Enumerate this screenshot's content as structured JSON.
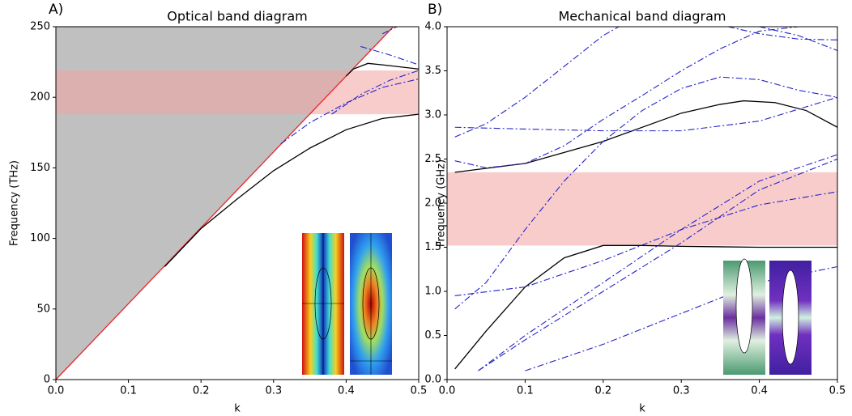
{
  "chart_data": [
    {
      "type": "line",
      "panel_label": "A)",
      "title": "Optical band diagram",
      "xlabel": "k",
      "ylabel": "Frequency (THz)",
      "xlim": [
        0,
        0.5
      ],
      "ylim": [
        0,
        250
      ],
      "xticks": [
        {
          "value": 0,
          "label": "0.0"
        },
        0.1,
        0.2,
        0.3,
        0.4,
        0.5
      ],
      "yticks": [
        0,
        50,
        100,
        150,
        200,
        250
      ],
      "shaded_band": {
        "range": [
          188,
          219
        ],
        "color": "#f4a3a3"
      },
      "series": [
        {
          "color": "#e8262a",
          "style": "solid",
          "fill_above": "#c0c0c0",
          "x": [
            0,
            0.465
          ],
          "values": [
            0,
            250
          ]
        },
        {
          "color": "#000000",
          "style": "solid",
          "x": [
            0.15,
            0.2,
            0.25,
            0.3,
            0.35,
            0.4,
            0.45,
            0.5
          ],
          "values": [
            80,
            107,
            128,
            148,
            164,
            177,
            185,
            188
          ]
        },
        {
          "color": "#000000",
          "style": "solid",
          "x": [
            0.4,
            0.41,
            0.43,
            0.45,
            0.5
          ],
          "values": [
            215,
            220,
            224,
            223,
            220
          ]
        },
        {
          "color": "#2323c8",
          "style": "dashdot",
          "x": [
            0.31,
            0.35,
            0.4,
            0.45,
            0.5
          ],
          "values": [
            167,
            182,
            196,
            207,
            213
          ]
        },
        {
          "color": "#2323c8",
          "style": "dashdot",
          "x": [
            0.38,
            0.42,
            0.46,
            0.5
          ],
          "values": [
            188,
            202,
            212,
            219
          ]
        },
        {
          "color": "#2323c8",
          "style": "dashdot",
          "x": [
            0.42,
            0.46,
            0.5
          ],
          "values": [
            236,
            230,
            223
          ]
        },
        {
          "color": "#2323c8",
          "style": "dashdot",
          "x": [
            0.45,
            0.47
          ],
          "values": [
            245,
            250
          ]
        }
      ]
    },
    {
      "type": "line",
      "panel_label": "B)",
      "title": "Mechanical band diagram",
      "xlabel": "k",
      "ylabel": "Frequency (GHz)",
      "xlim": [
        0,
        0.5
      ],
      "ylim": [
        0,
        4
      ],
      "xticks": [
        {
          "value": 0,
          "label": "0.0"
        },
        0.1,
        0.2,
        0.3,
        0.4,
        0.5
      ],
      "yticks": [
        {
          "value": 0,
          "label": "0.0"
        },
        0.5,
        {
          "value": 1,
          "label": "1.0"
        },
        1.5,
        {
          "value": 2,
          "label": "2.0"
        },
        2.5,
        {
          "value": 3,
          "label": "3.0"
        },
        3.5,
        {
          "value": 4,
          "label": "4.0"
        }
      ],
      "shaded_band": {
        "range": [
          1.52,
          2.35
        ],
        "color": "#f4a3a3"
      },
      "series": [
        {
          "color": "#000000",
          "style": "solid",
          "x": [
            0.01,
            0.05,
            0.1,
            0.15,
            0.2,
            0.25,
            0.3,
            0.4,
            0.5
          ],
          "values": [
            0.12,
            0.55,
            1.05,
            1.38,
            1.52,
            1.52,
            1.51,
            1.5,
            1.5
          ]
        },
        {
          "color": "#000000",
          "style": "solid",
          "x": [
            0.01,
            0.1,
            0.2,
            0.3,
            0.35,
            0.38,
            0.42,
            0.46,
            0.5
          ],
          "values": [
            2.35,
            2.45,
            2.7,
            3.02,
            3.12,
            3.16,
            3.14,
            3.05,
            2.86
          ]
        },
        {
          "color": "#2323c8",
          "style": "dashdot",
          "x": [
            0.01,
            0.05,
            0.1,
            0.15,
            0.2,
            0.25,
            0.3,
            0.35,
            0.4,
            0.45,
            0.5
          ],
          "values": [
            0.8,
            1.1,
            1.7,
            2.25,
            2.7,
            3.05,
            3.3,
            3.43,
            3.4,
            3.28,
            3.2
          ]
        },
        {
          "color": "#2323c8",
          "style": "dashdot",
          "x": [
            0.01,
            0.1,
            0.2,
            0.3,
            0.4,
            0.5
          ],
          "values": [
            0.95,
            1.05,
            1.35,
            1.7,
            1.98,
            2.13
          ]
        },
        {
          "color": "#2323c8",
          "style": "dashdot",
          "x": [
            0.01,
            0.05,
            0.1,
            0.15,
            0.2,
            0.25,
            0.3,
            0.35,
            0.4,
            0.45
          ],
          "values": [
            2.48,
            2.4,
            2.45,
            2.65,
            2.95,
            3.22,
            3.5,
            3.75,
            3.95,
            4
          ]
        },
        {
          "color": "#2323c8",
          "style": "dashdot",
          "x": [
            0.01,
            0.05,
            0.1,
            0.15,
            0.2,
            0.22
          ],
          "values": [
            2.75,
            2.9,
            3.2,
            3.55,
            3.9,
            4
          ]
        },
        {
          "color": "#2323c8",
          "style": "dashdot",
          "x": [
            0.01,
            0.1,
            0.2,
            0.3,
            0.4,
            0.5
          ],
          "values": [
            2.86,
            2.84,
            2.82,
            2.82,
            2.93,
            3.2
          ]
        },
        {
          "color": "#2323c8",
          "style": "dashdot",
          "x": [
            0.04,
            0.1,
            0.2,
            0.3,
            0.4,
            0.5
          ],
          "values": [
            0.1,
            0.5,
            1.1,
            1.7,
            2.25,
            2.55
          ]
        },
        {
          "color": "#2323c8",
          "style": "dashdot",
          "x": [
            0.04,
            0.1,
            0.2,
            0.3,
            0.4,
            0.5
          ],
          "values": [
            0.1,
            0.45,
            1.0,
            1.55,
            2.15,
            2.5
          ]
        },
        {
          "color": "#2323c8",
          "style": "dashdot",
          "x": [
            0.1,
            0.2,
            0.3,
            0.4,
            0.5
          ],
          "values": [
            0.1,
            0.4,
            0.75,
            1.1,
            1.28
          ]
        },
        {
          "color": "#2323c8",
          "style": "dashdot",
          "x": [
            0.36,
            0.4,
            0.45,
            0.5
          ],
          "values": [
            4,
            3.92,
            3.86,
            3.85
          ]
        },
        {
          "color": "#2323c8",
          "style": "dashdot",
          "x": [
            0.4,
            0.45,
            0.5
          ],
          "values": [
            4,
            3.9,
            3.73
          ]
        }
      ]
    }
  ]
}
